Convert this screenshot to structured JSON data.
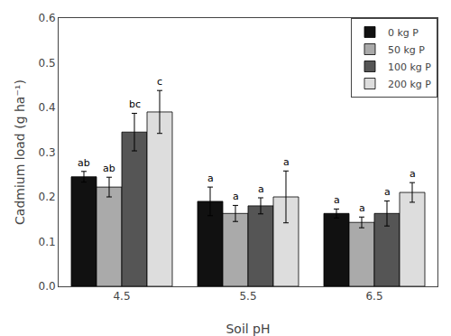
{
  "chart_data": {
    "type": "bar",
    "xlabel": "Soil pH",
    "ylabel": "Cadmium load (g ha⁻¹)",
    "categories": [
      "4.5",
      "5.5",
      "6.5"
    ],
    "series": [
      {
        "name": "0 kg P",
        "color": "#111111",
        "values": [
          0.245,
          0.19,
          0.163
        ],
        "errors": [
          0.012,
          0.032,
          0.01
        ],
        "annotations": [
          "ab",
          "a",
          "a"
        ]
      },
      {
        "name": "50 kg P",
        "color": "#aaaaaa",
        "values": [
          0.222,
          0.163,
          0.143
        ],
        "errors": [
          0.022,
          0.018,
          0.012
        ],
        "annotations": [
          "ab",
          "a",
          "a"
        ]
      },
      {
        "name": "100 kg P",
        "color": "#555555",
        "values": [
          0.345,
          0.18,
          0.163
        ],
        "errors": [
          0.042,
          0.018,
          0.028
        ],
        "annotations": [
          "bc",
          "a",
          "a"
        ]
      },
      {
        "name": "200 kg P",
        "color": "#dddddd",
        "values": [
          0.39,
          0.2,
          0.21
        ],
        "errors": [
          0.048,
          0.058,
          0.022
        ],
        "annotations": [
          "c",
          "a",
          "a"
        ]
      }
    ],
    "ylim": [
      0.0,
      0.6
    ],
    "yticks": [
      {
        "value": 0.0,
        "label": "0.0"
      },
      0.1,
      0.2,
      0.3,
      0.4,
      0.5,
      0.6
    ],
    "grid": false,
    "legend": "upper right"
  }
}
